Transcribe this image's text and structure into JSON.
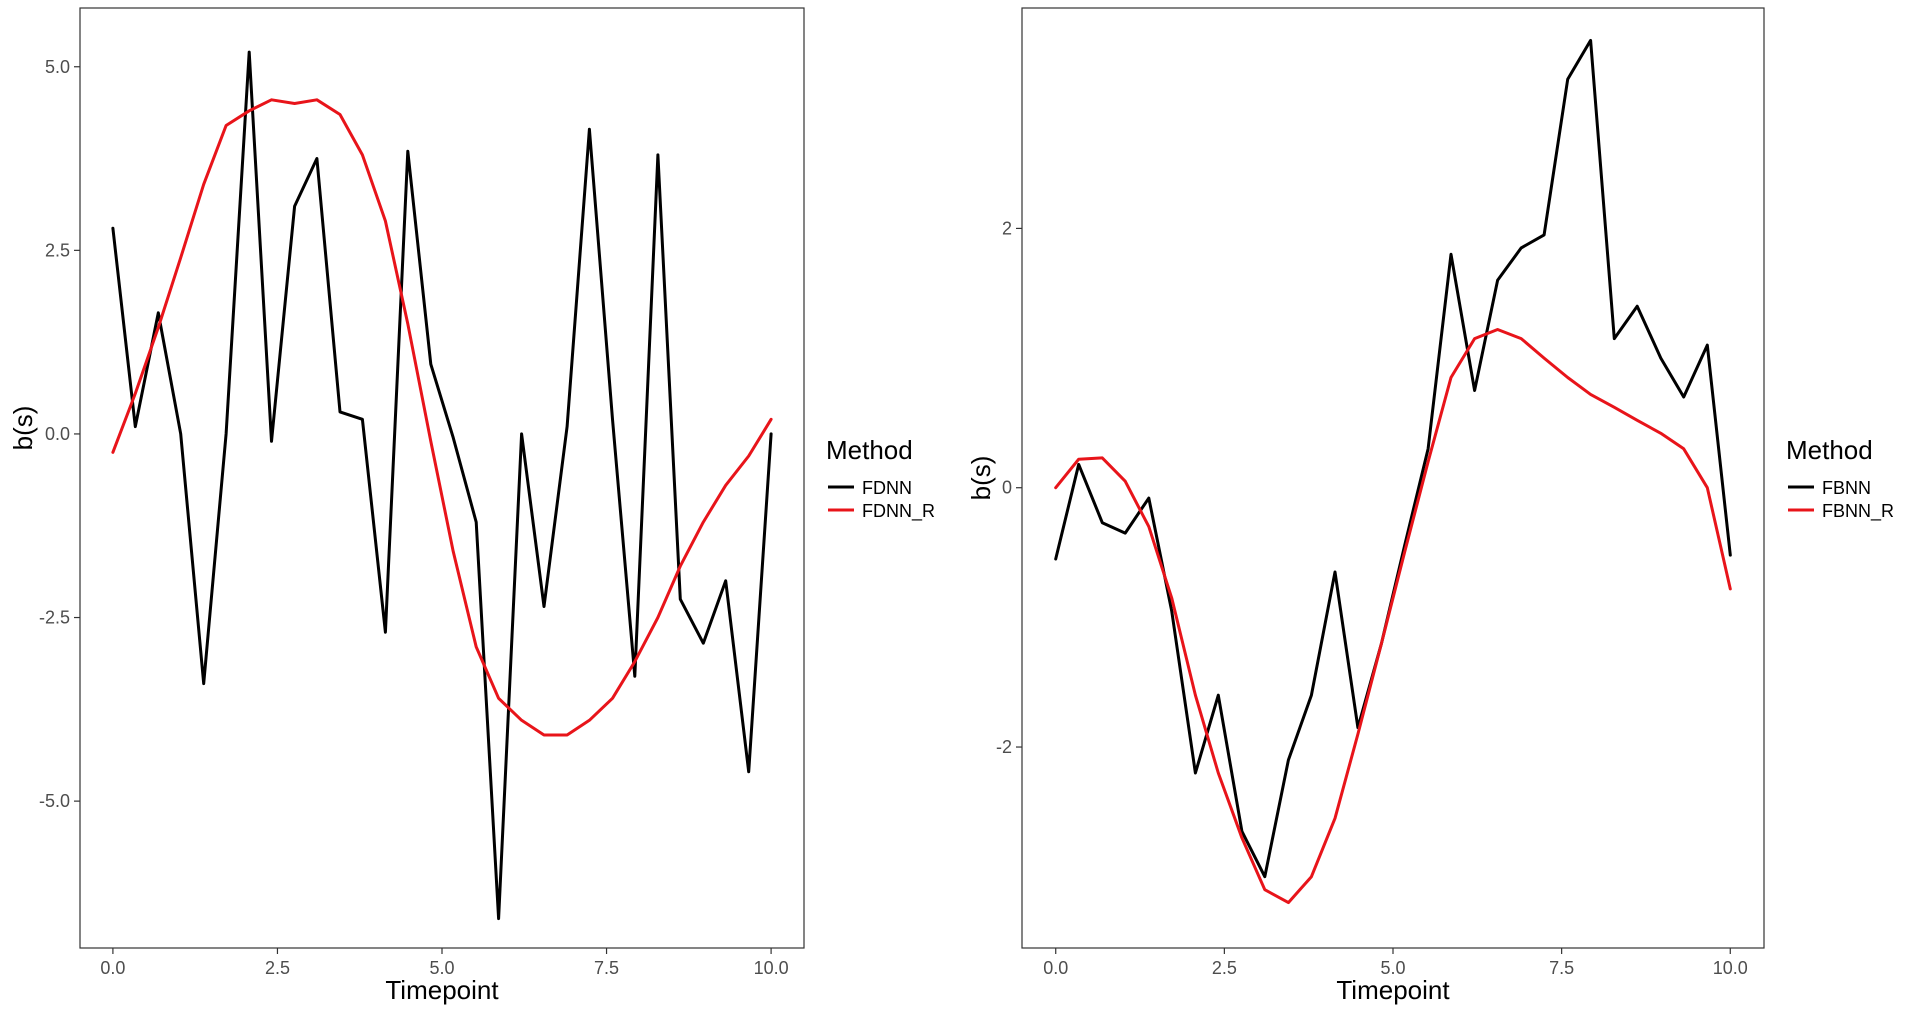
{
  "colors": {
    "black_series": "#000000",
    "red_series": "#e8141a",
    "panel_border": "#333333",
    "tick_text": "#4d4d4d"
  },
  "chart_data": [
    {
      "type": "line",
      "xlabel": "Timepoint",
      "ylabel": "b(s)",
      "xlim": [
        -0.5,
        10.5
      ],
      "ylim": [
        -7.0,
        5.8
      ],
      "x_ticks": [
        0.0,
        2.5,
        5.0,
        7.5,
        10.0
      ],
      "x_tick_labels": [
        "0.0",
        "2.5",
        "5.0",
        "7.5",
        "10.0"
      ],
      "y_ticks": [
        5.0,
        2.5,
        0.0,
        -2.5,
        -5.0
      ],
      "y_tick_labels": [
        "5.0",
        "2.5",
        "0.0",
        "-2.5",
        "-5.0"
      ],
      "grid": false,
      "legend": {
        "title": "Method",
        "position": "right"
      },
      "series": [
        {
          "name": "FDNN",
          "color": "#000000",
          "x": [
            0.0,
            0.34,
            0.69,
            1.03,
            1.38,
            1.72,
            2.07,
            2.41,
            2.76,
            3.1,
            3.45,
            3.79,
            4.14,
            4.48,
            4.83,
            5.17,
            5.52,
            5.86,
            6.21,
            6.55,
            6.9,
            7.24,
            7.59,
            7.93,
            8.28,
            8.62,
            8.97,
            9.31,
            9.66,
            10.0
          ],
          "y": [
            2.8,
            0.1,
            1.65,
            0.0,
            -3.4,
            0.0,
            5.2,
            -0.1,
            3.1,
            3.75,
            0.3,
            0.2,
            -2.7,
            3.85,
            0.95,
            -0.05,
            -1.2,
            -6.6,
            0.0,
            -2.35,
            0.1,
            4.15,
            0.2,
            -3.3,
            3.8,
            -2.25,
            -2.85,
            -2.0,
            -4.6,
            0.0
          ]
        },
        {
          "name": "FDNN_R",
          "color": "#e8141a",
          "x": [
            0.0,
            0.34,
            0.69,
            1.03,
            1.38,
            1.72,
            2.07,
            2.41,
            2.76,
            3.1,
            3.45,
            3.79,
            4.14,
            4.48,
            4.83,
            5.17,
            5.52,
            5.86,
            6.21,
            6.55,
            6.9,
            7.24,
            7.59,
            7.93,
            8.28,
            8.62,
            8.97,
            9.31,
            9.66,
            10.0
          ],
          "y": [
            -0.25,
            0.55,
            1.45,
            2.4,
            3.4,
            4.2,
            4.4,
            4.55,
            4.5,
            4.55,
            4.35,
            3.8,
            2.9,
            1.5,
            -0.1,
            -1.6,
            -2.9,
            -3.6,
            -3.9,
            -4.1,
            -4.1,
            -3.9,
            -3.6,
            -3.1,
            -2.5,
            -1.8,
            -1.2,
            -0.7,
            -0.3,
            0.2
          ]
        }
      ]
    },
    {
      "type": "line",
      "xlabel": "Timepoint",
      "ylabel": "b(s)",
      "xlim": [
        -0.5,
        10.5
      ],
      "ylim": [
        -3.55,
        3.7
      ],
      "x_ticks": [
        0.0,
        2.5,
        5.0,
        7.5,
        10.0
      ],
      "x_tick_labels": [
        "0.0",
        "2.5",
        "5.0",
        "7.5",
        "10.0"
      ],
      "y_ticks": [
        2,
        0,
        -2
      ],
      "y_tick_labels": [
        "2",
        "0",
        "-2"
      ],
      "grid": false,
      "legend": {
        "title": "Method",
        "position": "right"
      },
      "series": [
        {
          "name": "FBNN",
          "color": "#000000",
          "x": [
            0.0,
            0.34,
            0.69,
            1.03,
            1.38,
            1.72,
            2.07,
            2.41,
            2.76,
            3.1,
            3.45,
            3.79,
            4.14,
            4.48,
            4.83,
            5.17,
            5.52,
            5.86,
            6.21,
            6.55,
            6.9,
            7.24,
            7.59,
            7.93,
            8.28,
            8.62,
            8.97,
            9.31,
            9.66,
            10.0
          ],
          "y": [
            -0.55,
            0.18,
            -0.27,
            -0.35,
            -0.08,
            -0.95,
            -2.2,
            -1.6,
            -2.65,
            -3.0,
            -2.1,
            -1.6,
            -0.65,
            -1.85,
            -1.2,
            -0.45,
            0.3,
            1.8,
            0.75,
            1.6,
            1.85,
            1.95,
            3.15,
            3.45,
            1.15,
            1.4,
            1.0,
            0.7,
            1.1,
            -0.52
          ]
        },
        {
          "name": "FBNN_R",
          "color": "#e8141a",
          "x": [
            0.0,
            0.34,
            0.69,
            1.03,
            1.38,
            1.72,
            2.07,
            2.41,
            2.76,
            3.1,
            3.45,
            3.79,
            4.14,
            4.48,
            4.83,
            5.17,
            5.52,
            5.86,
            6.21,
            6.55,
            6.9,
            7.24,
            7.59,
            7.93,
            8.28,
            8.62,
            8.97,
            9.31,
            9.66,
            10.0
          ],
          "y": [
            0.0,
            0.22,
            0.23,
            0.05,
            -0.3,
            -0.85,
            -1.6,
            -2.2,
            -2.7,
            -3.1,
            -3.2,
            -3.0,
            -2.55,
            -1.9,
            -1.2,
            -0.5,
            0.2,
            0.85,
            1.15,
            1.22,
            1.15,
            1.0,
            0.85,
            0.72,
            0.62,
            0.52,
            0.42,
            0.3,
            0.0,
            -0.78
          ]
        }
      ]
    }
  ]
}
